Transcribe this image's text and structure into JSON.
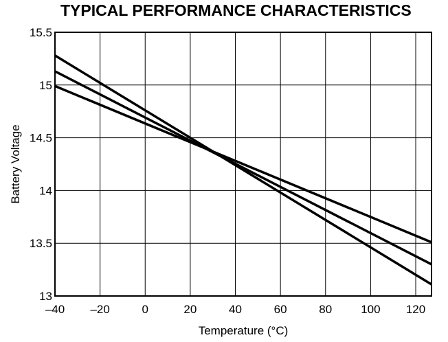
{
  "chart_data": {
    "type": "line",
    "title": "TYPICAL PERFORMANCE CHARACTERISTICS",
    "xlabel": "Temperature (°C)",
    "ylabel": "Battery Voltage",
    "xlim": [
      -40,
      127
    ],
    "ylim": [
      13,
      15.5
    ],
    "grid": true,
    "xticks": [
      {
        "value": -40,
        "label": "–40"
      },
      {
        "value": -20,
        "label": "–20"
      },
      {
        "value": 0,
        "label": "0"
      },
      {
        "value": 20,
        "label": "20"
      },
      {
        "value": 40,
        "label": "40"
      },
      {
        "value": 60,
        "label": "60"
      },
      {
        "value": 80,
        "label": "80"
      },
      {
        "value": 100,
        "label": "100"
      },
      {
        "value": 120,
        "label": "120"
      }
    ],
    "yticks": [
      {
        "value": 13,
        "label": "13"
      },
      {
        "value": 13.5,
        "label": "13.5"
      },
      {
        "value": 14,
        "label": "14"
      },
      {
        "value": 14.5,
        "label": "14.5"
      },
      {
        "value": 15,
        "label": "15"
      },
      {
        "value": 15.5,
        "label": "15.5"
      }
    ],
    "series": [
      {
        "x": [
          -40,
          127
        ],
        "values": [
          15.28,
          13.11
        ]
      },
      {
        "x": [
          -40,
          127
        ],
        "values": [
          15.13,
          13.3
        ]
      },
      {
        "x": [
          -40,
          127
        ],
        "values": [
          14.99,
          13.51
        ]
      }
    ],
    "line_color": "#000000",
    "grid_color": "#000000"
  }
}
